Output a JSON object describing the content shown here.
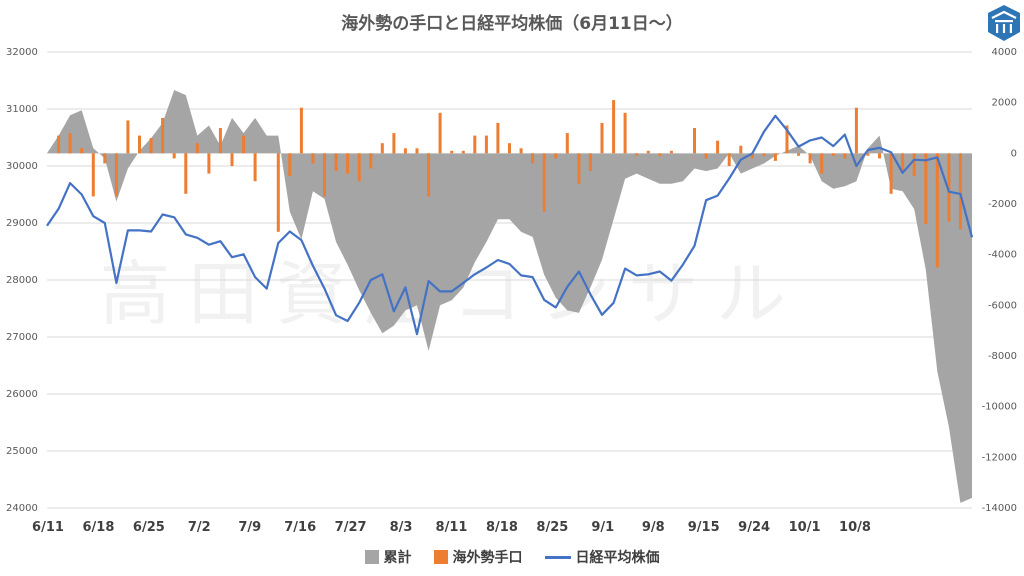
{
  "chart_data": {
    "type": "line",
    "title": "海外勢の手口と日経平均株価（6月11日～）",
    "watermark": "高田資産コンサル",
    "left_axis": {
      "min": 24000,
      "max": 32000,
      "ticks": [
        "32000",
        "31000",
        "30000",
        "29000",
        "28000",
        "27000",
        "26000",
        "25000",
        "24000"
      ]
    },
    "right_axis": {
      "min": -14000,
      "max": 4000,
      "ticks": [
        "4000",
        "2000",
        "0",
        "-2000",
        "-4000",
        "-6000",
        "-8000",
        "-10000",
        "-12000",
        "-14000"
      ]
    },
    "x_tick_labels": [
      "6/11",
      "6/18",
      "6/25",
      "7/2",
      "7/9",
      "7/16",
      "7/27",
      "8/3",
      "8/11",
      "8/18",
      "8/25",
      "9/1",
      "9/8",
      "9/15",
      "9/24",
      "10/1",
      "10/8"
    ],
    "num_days": 81,
    "legend": [
      {
        "name": "累計",
        "color": "#a5a5a5",
        "kind": "area"
      },
      {
        "name": "海外勢手口",
        "color": "#ed7d31",
        "kind": "bar"
      },
      {
        "name": "日経平均株価",
        "color": "#4472c4",
        "kind": "line"
      }
    ],
    "series": [
      {
        "name": "累計",
        "axis": "right",
        "color": "#a5a5a5",
        "values": [
          0,
          700,
          1500,
          1700,
          200,
          -200,
          -1900,
          -600,
          100,
          600,
          1200,
          2500,
          2300,
          700,
          1100,
          300,
          1400,
          800,
          1400,
          700,
          700,
          -2300,
          -3400,
          -1500,
          -1800,
          -3500,
          -4400,
          -5400,
          -6300,
          -7100,
          -6800,
          -6200,
          -6000,
          -7800,
          -6000,
          -5800,
          -5300,
          -4300,
          -3500,
          -2600,
          -2600,
          -3100,
          -3300,
          -4800,
          -5700,
          -6200,
          -6300,
          -5300,
          -4200,
          -2600,
          -1000,
          -800,
          -1000,
          -1200,
          -1200,
          -1100,
          -600,
          -700,
          -600,
          0,
          -800,
          -600,
          -400,
          -100,
          100,
          300,
          -100,
          -1100,
          -1400,
          -1300,
          -1100,
          200,
          700,
          -1400,
          -1500,
          -2200,
          -4600,
          -8600,
          -10800,
          -13800,
          -13600
        ]
      },
      {
        "name": "海外勢手口",
        "axis": "right",
        "color": "#ed7d31",
        "values": [
          0,
          700,
          800,
          200,
          -1700,
          -400,
          -1700,
          1300,
          700,
          600,
          1400,
          -200,
          -1600,
          400,
          -800,
          1000,
          -500,
          700,
          -1100,
          0,
          -3100,
          -900,
          1800,
          -400,
          -1700,
          -700,
          -800,
          -1100,
          -600,
          400,
          800,
          200,
          200,
          -1700,
          1600,
          100,
          100,
          700,
          700,
          1200,
          400,
          200,
          -400,
          -2300,
          -200,
          800,
          -1200,
          -700,
          1200,
          2100,
          1600,
          -100,
          100,
          -100,
          100,
          0,
          1000,
          -200,
          500,
          -500,
          300,
          -200,
          -100,
          -300,
          1100,
          -100,
          -400,
          -800,
          -100,
          -200,
          1800,
          -100,
          -200,
          -1600,
          -800,
          -900,
          -2800,
          -4500,
          -2700,
          -3000,
          0
        ]
      },
      {
        "name": "日経平均株価",
        "axis": "left",
        "color": "#4472c4",
        "values": [
          28950,
          29250,
          29700,
          29500,
          29120,
          29000,
          27950,
          28870,
          28870,
          28850,
          29150,
          29100,
          28800,
          28740,
          28620,
          28680,
          28400,
          28450,
          28050,
          27850,
          28650,
          28850,
          28700,
          28250,
          27850,
          27380,
          27280,
          27600,
          28000,
          28100,
          27450,
          27870,
          27050,
          27980,
          27800,
          27800,
          27950,
          28100,
          28220,
          28350,
          28280,
          28080,
          28050,
          27650,
          27520,
          27880,
          28150,
          27750,
          27390,
          27600,
          28200,
          28080,
          28100,
          28150,
          27990,
          28270,
          28600,
          29400,
          29480,
          29780,
          30110,
          30220,
          30600,
          30880,
          30630,
          30340,
          30450,
          30500,
          30350,
          30550,
          30000,
          30280,
          30320,
          30240,
          29880,
          30110,
          30100,
          30150,
          29550,
          29510,
          28750
        ]
      }
    ]
  }
}
